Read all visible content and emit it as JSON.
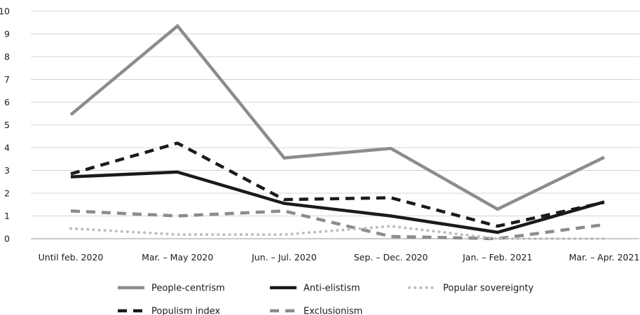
{
  "chart_data": {
    "type": "line",
    "categories": [
      "Until feb. 2020",
      "Mar. – May 2020",
      "Jun. – Jul. 2020",
      "Sep. – Dec. 2020",
      "Jan. – Feb. 2021",
      "Mar. – Apr. 2021"
    ],
    "ylim": [
      0,
      10
    ],
    "yticks": [
      "0",
      "1",
      "2",
      "3",
      "4",
      "5",
      "6",
      "7",
      "8",
      "9",
      "10"
    ],
    "grid": "horizontal",
    "legend_position": "bottom",
    "series": [
      {
        "name": "People-centrism",
        "values": [
          5.45,
          9.35,
          3.55,
          3.97,
          1.3,
          3.58
        ],
        "color": "#8c8c8c",
        "style": "solid"
      },
      {
        "name": "Anti-elistism",
        "values": [
          2.72,
          2.93,
          1.55,
          1.0,
          0.28,
          1.62
        ],
        "color": "#1a1a1a",
        "style": "solid"
      },
      {
        "name": "Popular sovereignty",
        "values": [
          0.45,
          0.18,
          0.18,
          0.55,
          0.0,
          0.0
        ],
        "color": "#bdbdbd",
        "style": "dotted"
      },
      {
        "name": "Populism index",
        "values": [
          2.85,
          4.2,
          1.72,
          1.8,
          0.55,
          1.6
        ],
        "color": "#1a1a1a",
        "style": "dashed"
      },
      {
        "name": "Exclusionism",
        "values": [
          1.22,
          1.0,
          1.22,
          0.1,
          0.0,
          0.62
        ],
        "color": "#8c8c8c",
        "style": "dashed"
      }
    ]
  }
}
